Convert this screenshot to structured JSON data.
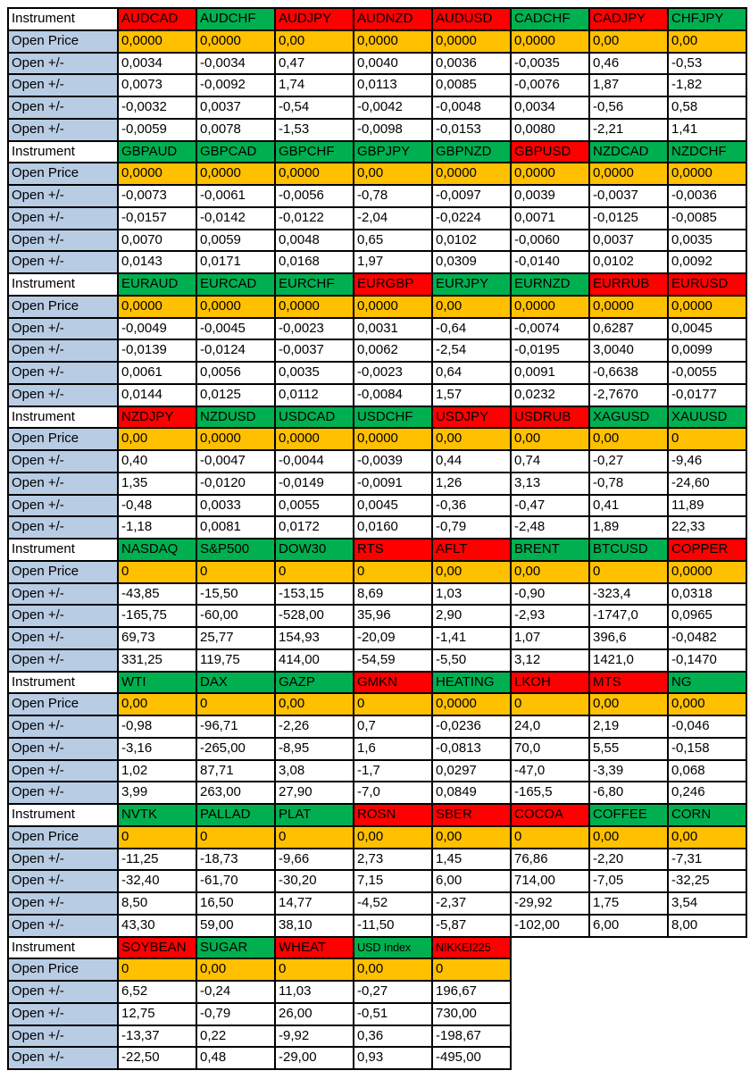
{
  "colors": {
    "red": "#ff0000",
    "green": "#00b050",
    "open_price_bg": "#ffc000",
    "label_bg": "#b8cce4",
    "instrument_label_bg": "#ffffff",
    "cell_bg": "#ffffff",
    "border": "#000000",
    "text": "#000000"
  },
  "row_labels": {
    "instrument": "Instrument",
    "open_price": "Open Price",
    "open_delta": "Open +/-"
  },
  "blocks": [
    {
      "instruments": [
        {
          "name": "AUDCAD",
          "color": "red",
          "open_price": "0,0000",
          "deltas": [
            "0,0034",
            "0,0073",
            "-0,0032",
            "-0,0059"
          ]
        },
        {
          "name": "AUDCHF",
          "color": "green",
          "open_price": "0,0000",
          "deltas": [
            "-0,0034",
            "-0,0092",
            "0,0037",
            "0,0078"
          ]
        },
        {
          "name": "AUDJPY",
          "color": "red",
          "open_price": "0,00",
          "deltas": [
            "0,47",
            "1,74",
            "-0,54",
            "-1,53"
          ]
        },
        {
          "name": "AUDNZD",
          "color": "red",
          "open_price": "0,0000",
          "deltas": [
            "0,0040",
            "0,0113",
            "-0,0042",
            "-0,0098"
          ]
        },
        {
          "name": "AUDUSD",
          "color": "red",
          "open_price": "0,0000",
          "deltas": [
            "0,0036",
            "0,0085",
            "-0,0048",
            "-0,0153"
          ]
        },
        {
          "name": "CADCHF",
          "color": "green",
          "open_price": "0,0000",
          "deltas": [
            "-0,0035",
            "-0,0076",
            "0,0034",
            "0,0080"
          ]
        },
        {
          "name": "CADJPY",
          "color": "red",
          "open_price": "0,00",
          "deltas": [
            "0,46",
            "1,87",
            "-0,56",
            "-2,21"
          ]
        },
        {
          "name": "CHFJPY",
          "color": "green",
          "open_price": "0,00",
          "deltas": [
            "-0,53",
            "-1,82",
            "0,58",
            "1,41"
          ]
        }
      ]
    },
    {
      "instruments": [
        {
          "name": "GBPAUD",
          "color": "green",
          "open_price": "0,0000",
          "deltas": [
            "-0,0073",
            "-0,0157",
            "0,0070",
            "0,0143"
          ]
        },
        {
          "name": "GBPCAD",
          "color": "green",
          "open_price": "0,0000",
          "deltas": [
            "-0,0061",
            "-0,0142",
            "0,0059",
            "0,0171"
          ]
        },
        {
          "name": "GBPCHF",
          "color": "green",
          "open_price": "0,0000",
          "deltas": [
            "-0,0056",
            "-0,0122",
            "0,0048",
            "0,0168"
          ]
        },
        {
          "name": "GBPJPY",
          "color": "green",
          "open_price": "0,00",
          "deltas": [
            "-0,78",
            "-2,04",
            "0,65",
            "1,97"
          ]
        },
        {
          "name": "GBPNZD",
          "color": "green",
          "open_price": "0,0000",
          "deltas": [
            "-0,0097",
            "-0,0224",
            "0,0102",
            "0,0309"
          ]
        },
        {
          "name": "GBPUSD",
          "color": "red",
          "open_price": "0,0000",
          "deltas": [
            "0,0039",
            "0,0071",
            "-0,0060",
            "-0,0140"
          ]
        },
        {
          "name": "NZDCAD",
          "color": "green",
          "open_price": "0,0000",
          "deltas": [
            "-0,0037",
            "-0,0125",
            "0,0037",
            "0,0102"
          ]
        },
        {
          "name": "NZDCHF",
          "color": "green",
          "open_price": "0,0000",
          "deltas": [
            "-0,0036",
            "-0,0085",
            "0,0035",
            "0,0092"
          ]
        }
      ]
    },
    {
      "instruments": [
        {
          "name": "EURAUD",
          "color": "green",
          "open_price": "0,0000",
          "deltas": [
            "-0,0049",
            "-0,0139",
            "0,0061",
            "0,0144"
          ]
        },
        {
          "name": "EURCAD",
          "color": "green",
          "open_price": "0,0000",
          "deltas": [
            "-0,0045",
            "-0,0124",
            "0,0056",
            "0,0125"
          ]
        },
        {
          "name": "EURCHF",
          "color": "green",
          "open_price": "0,0000",
          "deltas": [
            "-0,0023",
            "-0,0037",
            "0,0035",
            "0,0112"
          ]
        },
        {
          "name": "EURGBP",
          "color": "red",
          "open_price": "0,0000",
          "deltas": [
            "0,0031",
            "0,0062",
            "-0,0023",
            "-0,0084"
          ]
        },
        {
          "name": "EURJPY",
          "color": "green",
          "open_price": "0,00",
          "deltas": [
            "-0,64",
            "-2,54",
            "0,64",
            "1,57"
          ]
        },
        {
          "name": "EURNZD",
          "color": "green",
          "open_price": "0,0000",
          "deltas": [
            "-0,0074",
            "-0,0195",
            "0,0091",
            "0,0232"
          ]
        },
        {
          "name": "EURRUB",
          "color": "red",
          "open_price": "0,0000",
          "deltas": [
            "0,6287",
            "3,0040",
            "-0,6638",
            "-2,7670"
          ]
        },
        {
          "name": "EURUSD",
          "color": "red",
          "open_price": "0,0000",
          "deltas": [
            "0,0045",
            "0,0099",
            "-0,0055",
            "-0,0177"
          ]
        }
      ]
    },
    {
      "instruments": [
        {
          "name": "NZDJPY",
          "color": "red",
          "open_price": "0,00",
          "deltas": [
            "0,40",
            "1,35",
            "-0,48",
            "-1,18"
          ]
        },
        {
          "name": "NZDUSD",
          "color": "green",
          "open_price": "0,0000",
          "deltas": [
            "-0,0047",
            "-0,0120",
            "0,0033",
            "0,0081"
          ]
        },
        {
          "name": "USDCAD",
          "color": "green",
          "open_price": "0,0000",
          "deltas": [
            "-0,0044",
            "-0,0149",
            "0,0055",
            "0,0172"
          ]
        },
        {
          "name": "USDCHF",
          "color": "green",
          "open_price": "0,0000",
          "deltas": [
            "-0,0039",
            "-0,0091",
            "0,0045",
            "0,0160"
          ]
        },
        {
          "name": "USDJPY",
          "color": "red",
          "open_price": "0,00",
          "deltas": [
            "0,44",
            "1,26",
            "-0,36",
            "-0,79"
          ]
        },
        {
          "name": "USDRUB",
          "color": "red",
          "open_price": "0,00",
          "deltas": [
            "0,74",
            "3,13",
            "-0,47",
            "-2,48"
          ]
        },
        {
          "name": "XAGUSD",
          "color": "green",
          "open_price": "0,00",
          "deltas": [
            "-0,27",
            "-0,78",
            "0,41",
            "1,89"
          ]
        },
        {
          "name": "XAUUSD",
          "color": "green",
          "open_price": "0",
          "deltas": [
            "-9,46",
            "-24,60",
            "11,89",
            "22,33"
          ]
        }
      ]
    },
    {
      "instruments": [
        {
          "name": "NASDAQ",
          "color": "green",
          "open_price": "0",
          "deltas": [
            "-43,85",
            "-165,75",
            "69,73",
            "331,25"
          ]
        },
        {
          "name": "S&P500",
          "color": "green",
          "open_price": "0",
          "deltas": [
            "-15,50",
            "-60,00",
            "25,77",
            "119,75"
          ]
        },
        {
          "name": "DOW30",
          "color": "green",
          "open_price": "0",
          "deltas": [
            "-153,15",
            "-528,00",
            "154,93",
            "414,00"
          ]
        },
        {
          "name": "RTS",
          "color": "red",
          "open_price": "0",
          "deltas": [
            "8,69",
            "35,96",
            "-20,09",
            "-54,59"
          ]
        },
        {
          "name": "AFLT",
          "color": "red",
          "open_price": "0,00",
          "deltas": [
            "1,03",
            "2,90",
            "-1,41",
            "-5,50"
          ]
        },
        {
          "name": "BRENT",
          "color": "green",
          "open_price": "0,00",
          "deltas": [
            "-0,90",
            "-2,93",
            "1,07",
            "3,12"
          ]
        },
        {
          "name": "BTCUSD",
          "color": "green",
          "open_price": "0",
          "deltas": [
            "-323,4",
            "-1747,0",
            "396,6",
            "1421,0"
          ]
        },
        {
          "name": "COPPER",
          "color": "red",
          "open_price": "0,0000",
          "deltas": [
            "0,0318",
            "0,0965",
            "-0,0482",
            "-0,1470"
          ]
        }
      ]
    },
    {
      "instruments": [
        {
          "name": "WTI",
          "color": "green",
          "open_price": "0,00",
          "deltas": [
            "-0,98",
            "-3,16",
            "1,02",
            "3,99"
          ]
        },
        {
          "name": "DAX",
          "color": "green",
          "open_price": "0",
          "deltas": [
            "-96,71",
            "-265,00",
            "87,71",
            "263,00"
          ]
        },
        {
          "name": "GAZP",
          "color": "green",
          "open_price": "0,00",
          "deltas": [
            "-2,26",
            "-8,95",
            "3,08",
            "27,90"
          ]
        },
        {
          "name": "GMKN",
          "color": "red",
          "open_price": "0",
          "deltas": [
            "0,7",
            "1,6",
            "-1,7",
            "-7,0"
          ]
        },
        {
          "name": "HEATING",
          "color": "green",
          "open_price": "0,0000",
          "deltas": [
            "-0,0236",
            "-0,0813",
            "0,0297",
            "0,0849"
          ]
        },
        {
          "name": "LKOH",
          "color": "red",
          "open_price": "0",
          "deltas": [
            "24,0",
            "70,0",
            "-47,0",
            "-165,5"
          ]
        },
        {
          "name": "MTS",
          "color": "red",
          "open_price": "0,00",
          "deltas": [
            "2,19",
            "5,55",
            "-3,39",
            "-6,80"
          ]
        },
        {
          "name": "NG",
          "color": "green",
          "open_price": "0,000",
          "deltas": [
            "-0,046",
            "-0,158",
            "0,068",
            "0,246"
          ]
        }
      ]
    },
    {
      "instruments": [
        {
          "name": "NVTK",
          "color": "green",
          "open_price": "0",
          "deltas": [
            "-11,25",
            "-32,40",
            "8,50",
            "43,30"
          ]
        },
        {
          "name": "PALLAD",
          "color": "green",
          "open_price": "0",
          "deltas": [
            "-18,73",
            "-61,70",
            "16,50",
            "59,00"
          ]
        },
        {
          "name": "PLAT",
          "color": "green",
          "open_price": "0",
          "deltas": [
            "-9,66",
            "-30,20",
            "14,77",
            "38,10"
          ]
        },
        {
          "name": "ROSN",
          "color": "red",
          "open_price": "0,00",
          "deltas": [
            "2,73",
            "7,15",
            "-4,52",
            "-11,50"
          ]
        },
        {
          "name": "SBER",
          "color": "red",
          "open_price": "0,00",
          "deltas": [
            "1,45",
            "6,00",
            "-2,37",
            "-5,87"
          ]
        },
        {
          "name": "COCOA",
          "color": "red",
          "open_price": "0",
          "deltas": [
            "76,86",
            "714,00",
            "-29,92",
            "-102,00"
          ]
        },
        {
          "name": "COFFEE",
          "color": "green",
          "open_price": "0,00",
          "deltas": [
            "-2,20",
            "-7,05",
            "1,75",
            "6,00"
          ]
        },
        {
          "name": "CORN",
          "color": "green",
          "open_price": "0,00",
          "deltas": [
            "-7,31",
            "-32,25",
            "3,54",
            "8,00"
          ]
        }
      ]
    },
    {
      "instruments": [
        {
          "name": "SOYBEAN",
          "color": "red",
          "open_price": "0",
          "deltas": [
            "6,52",
            "12,75",
            "-13,37",
            "-22,50"
          ]
        },
        {
          "name": "SUGAR",
          "color": "green",
          "open_price": "0,00",
          "deltas": [
            "-0,24",
            "-0,79",
            "0,22",
            "0,48"
          ]
        },
        {
          "name": "WHEAT",
          "color": "red",
          "open_price": "0",
          "deltas": [
            "11,03",
            "26,00",
            "-9,92",
            "-29,00"
          ]
        },
        {
          "name": "USD Index",
          "color": "green",
          "open_price": "0,00",
          "deltas": [
            "-0,27",
            "-0,51",
            "0,36",
            "0,93"
          ]
        },
        {
          "name": "NIKKEI225",
          "color": "red",
          "open_price": "0",
          "deltas": [
            "196,67",
            "730,00",
            "-198,67",
            "-495,00"
          ]
        }
      ]
    }
  ]
}
